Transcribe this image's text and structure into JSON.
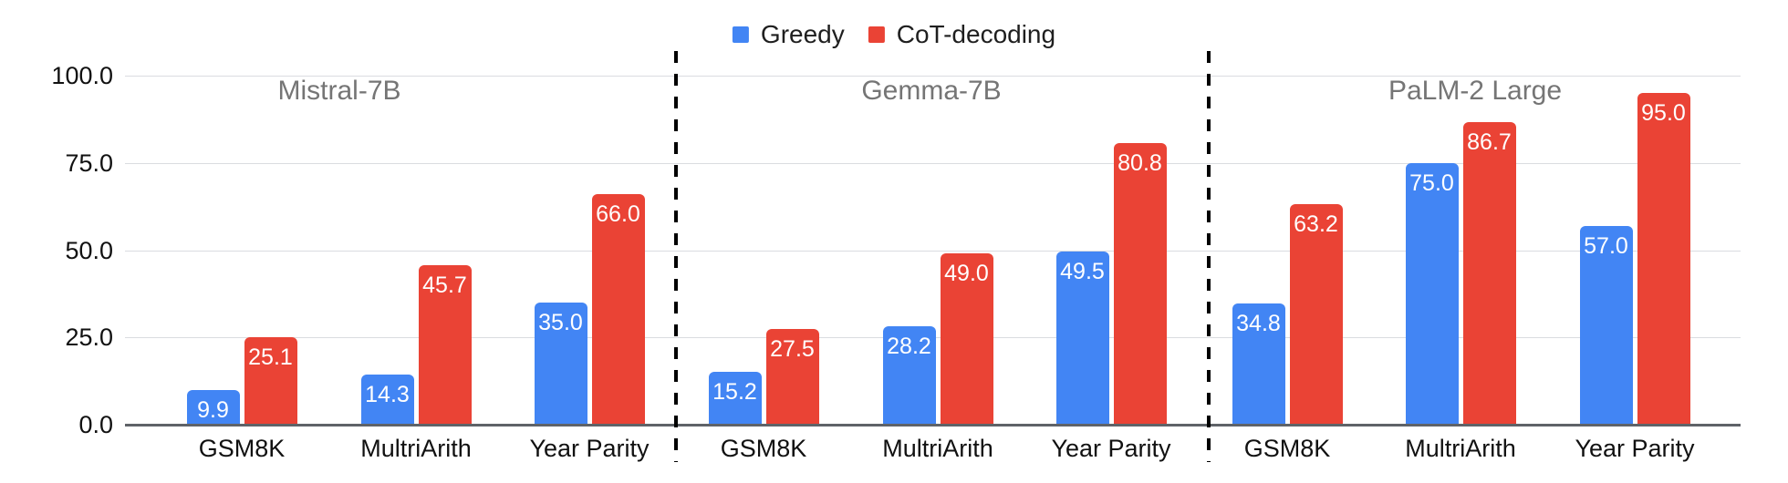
{
  "chart_data": {
    "type": "bar",
    "title": "",
    "legend": [
      {
        "label": "Greedy",
        "color": "#4285F4"
      },
      {
        "label": "CoT-decoding",
        "color": "#EA4335"
      }
    ],
    "legend_position": "top-center",
    "grid": true,
    "ylim": [
      0,
      100
    ],
    "y_ticks": [
      0,
      25,
      50,
      75,
      100
    ],
    "y_tick_labels": [
      "0.0",
      "25.0",
      "50.0",
      "75.0",
      "100.0"
    ],
    "value_label_format": "one-decimal-inside-bar-top",
    "sections": [
      {
        "title": "Mistral-7B",
        "categories": [
          "GSM8K",
          "MultriArith",
          "Year Parity"
        ],
        "series": [
          {
            "name": "Greedy",
            "values": [
              9.9,
              14.3,
              35.0
            ]
          },
          {
            "name": "CoT-decoding",
            "values": [
              25.1,
              45.7,
              66.0
            ]
          }
        ]
      },
      {
        "title": "Gemma-7B",
        "categories": [
          "GSM8K",
          "MultriArith",
          "Year Parity"
        ],
        "series": [
          {
            "name": "Greedy",
            "values": [
              15.2,
              28.2,
              49.5
            ]
          },
          {
            "name": "CoT-decoding",
            "values": [
              27.5,
              49.0,
              80.8
            ]
          }
        ]
      },
      {
        "title": "PaLM-2 Large",
        "categories": [
          "GSM8K",
          "MultriArith",
          "Year Parity"
        ],
        "series": [
          {
            "name": "Greedy",
            "values": [
              34.8,
              75.0,
              57.0
            ]
          },
          {
            "name": "CoT-decoding",
            "values": [
              63.2,
              86.7,
              95.0
            ]
          }
        ]
      }
    ],
    "separator_style": "black-dashed-vertical-line",
    "colors": {
      "greedy_blue": "#4285F4",
      "cot_red": "#EA4335",
      "section_title_gray": "#757575",
      "gridline": "#dadce0",
      "axis_line": "#5f6368",
      "value_label_text": "#ffffff"
    }
  }
}
